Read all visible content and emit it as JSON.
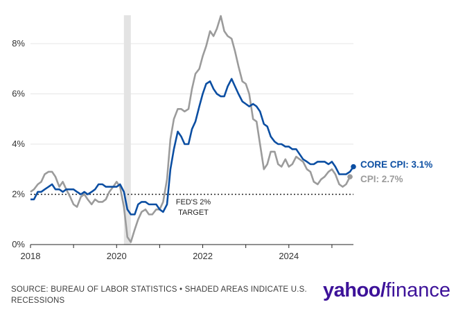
{
  "chart_data": {
    "type": "line",
    "title": "",
    "xlabel": "",
    "ylabel": "",
    "xlim": [
      2018.0,
      2025.5
    ],
    "ylim": [
      0,
      9
    ],
    "y_ticks": [
      0,
      2,
      4,
      6,
      8
    ],
    "y_tick_labels": [
      "0%",
      "2%",
      "4%",
      "6%",
      "8%"
    ],
    "x_ticks": [
      2018,
      2020,
      2022,
      2024
    ],
    "x_tick_labels": [
      "2018",
      "2020",
      "2022",
      "2024"
    ],
    "recession": {
      "start": 2020.17,
      "end": 2020.33
    },
    "target": {
      "value": 2.0,
      "label_line1": "FED'S 2%",
      "label_line2": "TARGET"
    },
    "series": [
      {
        "name": "CPI",
        "end_label": "CPI: 2.7%",
        "color": "#9b9b9b",
        "points": [
          [
            2018.0,
            2.1
          ],
          [
            2018.08,
            2.2
          ],
          [
            2018.17,
            2.4
          ],
          [
            2018.25,
            2.5
          ],
          [
            2018.33,
            2.8
          ],
          [
            2018.42,
            2.9
          ],
          [
            2018.5,
            2.9
          ],
          [
            2018.58,
            2.7
          ],
          [
            2018.67,
            2.3
          ],
          [
            2018.75,
            2.5
          ],
          [
            2018.83,
            2.2
          ],
          [
            2018.92,
            1.9
          ],
          [
            2019.0,
            1.6
          ],
          [
            2019.08,
            1.5
          ],
          [
            2019.17,
            1.9
          ],
          [
            2019.25,
            2.0
          ],
          [
            2019.33,
            1.8
          ],
          [
            2019.42,
            1.6
          ],
          [
            2019.5,
            1.8
          ],
          [
            2019.58,
            1.7
          ],
          [
            2019.67,
            1.7
          ],
          [
            2019.75,
            1.8
          ],
          [
            2019.83,
            2.1
          ],
          [
            2019.92,
            2.3
          ],
          [
            2020.0,
            2.5
          ],
          [
            2020.08,
            2.3
          ],
          [
            2020.17,
            1.5
          ],
          [
            2020.25,
            0.3
          ],
          [
            2020.33,
            0.1
          ],
          [
            2020.42,
            0.6
          ],
          [
            2020.5,
            1.0
          ],
          [
            2020.58,
            1.3
          ],
          [
            2020.67,
            1.4
          ],
          [
            2020.75,
            1.2
          ],
          [
            2020.83,
            1.2
          ],
          [
            2020.92,
            1.4
          ],
          [
            2021.0,
            1.4
          ],
          [
            2021.08,
            1.7
          ],
          [
            2021.17,
            2.6
          ],
          [
            2021.25,
            4.2
          ],
          [
            2021.33,
            5.0
          ],
          [
            2021.42,
            5.4
          ],
          [
            2021.5,
            5.4
          ],
          [
            2021.58,
            5.3
          ],
          [
            2021.67,
            5.4
          ],
          [
            2021.75,
            6.2
          ],
          [
            2021.83,
            6.8
          ],
          [
            2021.92,
            7.0
          ],
          [
            2022.0,
            7.5
          ],
          [
            2022.08,
            7.9
          ],
          [
            2022.17,
            8.5
          ],
          [
            2022.25,
            8.3
          ],
          [
            2022.33,
            8.6
          ],
          [
            2022.42,
            9.1
          ],
          [
            2022.5,
            8.5
          ],
          [
            2022.58,
            8.3
          ],
          [
            2022.67,
            8.2
          ],
          [
            2022.75,
            7.7
          ],
          [
            2022.83,
            7.1
          ],
          [
            2022.92,
            6.5
          ],
          [
            2023.0,
            6.4
          ],
          [
            2023.08,
            6.0
          ],
          [
            2023.17,
            5.0
          ],
          [
            2023.25,
            4.9
          ],
          [
            2023.33,
            4.0
          ],
          [
            2023.42,
            3.0
          ],
          [
            2023.5,
            3.2
          ],
          [
            2023.58,
            3.7
          ],
          [
            2023.67,
            3.7
          ],
          [
            2023.75,
            3.2
          ],
          [
            2023.83,
            3.1
          ],
          [
            2023.92,
            3.4
          ],
          [
            2024.0,
            3.1
          ],
          [
            2024.08,
            3.2
          ],
          [
            2024.17,
            3.5
          ],
          [
            2024.25,
            3.4
          ],
          [
            2024.33,
            3.3
          ],
          [
            2024.42,
            3.0
          ],
          [
            2024.5,
            2.9
          ],
          [
            2024.58,
            2.5
          ],
          [
            2024.67,
            2.4
          ],
          [
            2024.75,
            2.6
          ],
          [
            2024.83,
            2.7
          ],
          [
            2024.92,
            2.9
          ],
          [
            2025.0,
            3.0
          ],
          [
            2025.08,
            2.8
          ],
          [
            2025.17,
            2.4
          ],
          [
            2025.25,
            2.3
          ],
          [
            2025.33,
            2.4
          ],
          [
            2025.42,
            2.7
          ]
        ]
      },
      {
        "name": "CORE CPI",
        "end_label": "CORE CPI: 3.1%",
        "color": "#0b4ea2",
        "points": [
          [
            2018.0,
            1.8
          ],
          [
            2018.08,
            1.8
          ],
          [
            2018.17,
            2.1
          ],
          [
            2018.25,
            2.1
          ],
          [
            2018.33,
            2.2
          ],
          [
            2018.42,
            2.3
          ],
          [
            2018.5,
            2.4
          ],
          [
            2018.58,
            2.2
          ],
          [
            2018.67,
            2.2
          ],
          [
            2018.75,
            2.1
          ],
          [
            2018.83,
            2.2
          ],
          [
            2018.92,
            2.2
          ],
          [
            2019.0,
            2.2
          ],
          [
            2019.08,
            2.1
          ],
          [
            2019.17,
            2.0
          ],
          [
            2019.25,
            2.1
          ],
          [
            2019.33,
            2.0
          ],
          [
            2019.42,
            2.1
          ],
          [
            2019.5,
            2.2
          ],
          [
            2019.58,
            2.4
          ],
          [
            2019.67,
            2.4
          ],
          [
            2019.75,
            2.3
          ],
          [
            2019.83,
            2.3
          ],
          [
            2019.92,
            2.3
          ],
          [
            2020.0,
            2.3
          ],
          [
            2020.08,
            2.4
          ],
          [
            2020.17,
            2.1
          ],
          [
            2020.25,
            1.4
          ],
          [
            2020.33,
            1.2
          ],
          [
            2020.42,
            1.2
          ],
          [
            2020.5,
            1.6
          ],
          [
            2020.58,
            1.7
          ],
          [
            2020.67,
            1.7
          ],
          [
            2020.75,
            1.6
          ],
          [
            2020.83,
            1.6
          ],
          [
            2020.92,
            1.6
          ],
          [
            2021.0,
            1.4
          ],
          [
            2021.08,
            1.3
          ],
          [
            2021.17,
            1.6
          ],
          [
            2021.25,
            3.0
          ],
          [
            2021.33,
            3.8
          ],
          [
            2021.42,
            4.5
          ],
          [
            2021.5,
            4.3
          ],
          [
            2021.58,
            4.0
          ],
          [
            2021.67,
            4.0
          ],
          [
            2021.75,
            4.6
          ],
          [
            2021.83,
            4.9
          ],
          [
            2021.92,
            5.5
          ],
          [
            2022.0,
            6.0
          ],
          [
            2022.08,
            6.4
          ],
          [
            2022.17,
            6.5
          ],
          [
            2022.25,
            6.2
          ],
          [
            2022.33,
            6.0
          ],
          [
            2022.42,
            5.9
          ],
          [
            2022.5,
            5.9
          ],
          [
            2022.58,
            6.3
          ],
          [
            2022.67,
            6.6
          ],
          [
            2022.75,
            6.3
          ],
          [
            2022.83,
            6.0
          ],
          [
            2022.92,
            5.7
          ],
          [
            2023.0,
            5.6
          ],
          [
            2023.08,
            5.5
          ],
          [
            2023.17,
            5.6
          ],
          [
            2023.25,
            5.5
          ],
          [
            2023.33,
            5.3
          ],
          [
            2023.42,
            4.8
          ],
          [
            2023.5,
            4.7
          ],
          [
            2023.58,
            4.3
          ],
          [
            2023.67,
            4.1
          ],
          [
            2023.75,
            4.0
          ],
          [
            2023.83,
            4.0
          ],
          [
            2023.92,
            3.9
          ],
          [
            2024.0,
            3.9
          ],
          [
            2024.08,
            3.8
          ],
          [
            2024.17,
            3.8
          ],
          [
            2024.25,
            3.6
          ],
          [
            2024.33,
            3.4
          ],
          [
            2024.42,
            3.3
          ],
          [
            2024.5,
            3.2
          ],
          [
            2024.58,
            3.2
          ],
          [
            2024.67,
            3.3
          ],
          [
            2024.75,
            3.3
          ],
          [
            2024.83,
            3.3
          ],
          [
            2024.92,
            3.2
          ],
          [
            2025.0,
            3.3
          ],
          [
            2025.08,
            3.1
          ],
          [
            2025.17,
            2.8
          ],
          [
            2025.25,
            2.8
          ],
          [
            2025.33,
            2.8
          ],
          [
            2025.42,
            2.9
          ],
          [
            2025.5,
            3.1
          ]
        ]
      }
    ]
  },
  "footer": {
    "source": "SOURCE: BUREAU OF LABOR STATISTICS • SHADED AREAS INDICATE U.S. RECESSIONS"
  },
  "logo": {
    "brand": "yahoo",
    "slash": "/",
    "product": "finance"
  }
}
